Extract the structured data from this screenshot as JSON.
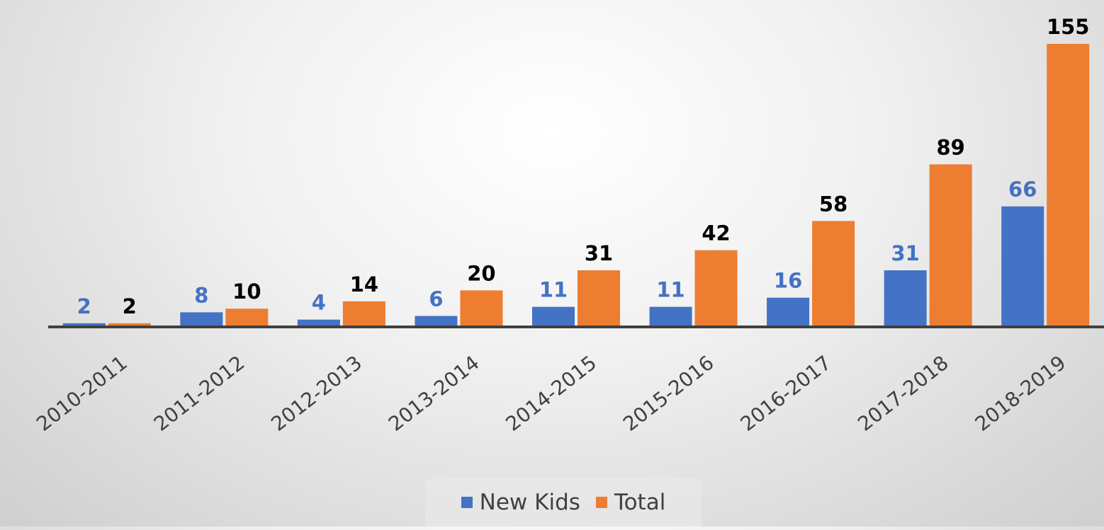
{
  "chart_data": {
    "type": "bar",
    "categories": [
      "2010-2011",
      "2011-2012",
      "2012-2013",
      "2013-2014",
      "2014-2015",
      "2015-2016",
      "2016-2017",
      "2017-2018",
      "2018-2019"
    ],
    "series": [
      {
        "name": "New Kids",
        "values": [
          2,
          8,
          4,
          6,
          11,
          11,
          16,
          31,
          66
        ],
        "color": "#4472c4",
        "label_color": "#4472c4"
      },
      {
        "name": "Total",
        "values": [
          2,
          10,
          14,
          20,
          31,
          42,
          58,
          89,
          155
        ],
        "color": "#ed7d31",
        "label_color": "#000000"
      }
    ],
    "title": "",
    "xlabel": "",
    "ylabel": "",
    "ylim": [
      0,
      155
    ],
    "grid": false,
    "legend_position": "bottom",
    "data_labels": true
  }
}
